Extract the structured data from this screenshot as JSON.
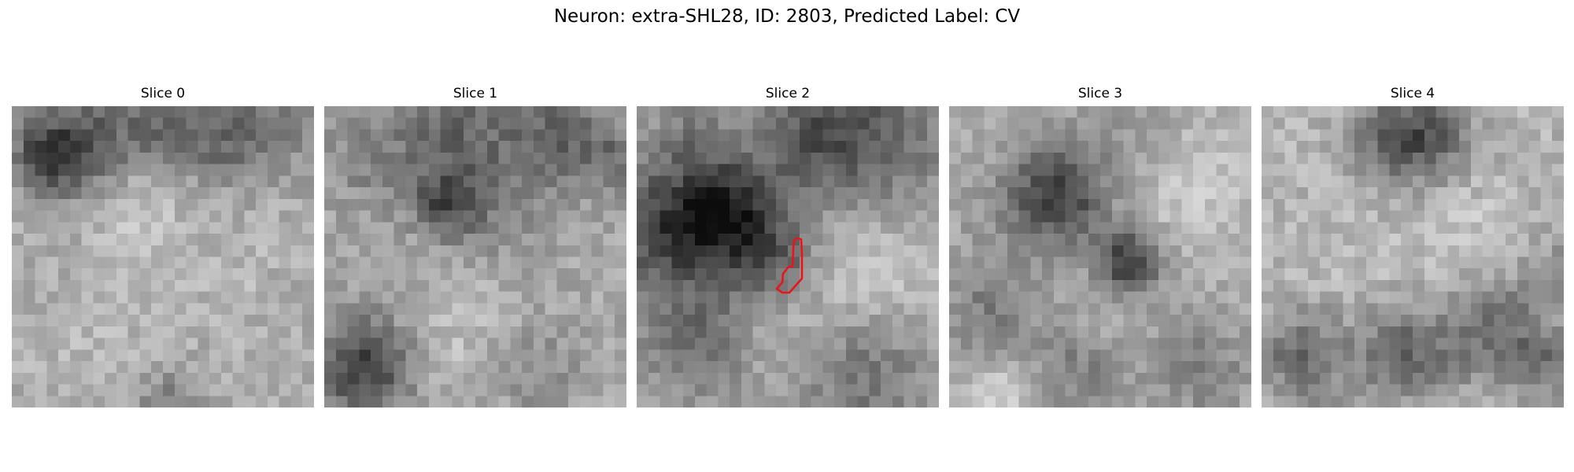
{
  "figure": {
    "title": "Neuron: extra-SHL28, ID: 2803, Predicted Label: CV"
  },
  "slices": [
    {
      "title": "Slice 0",
      "has_contour": false
    },
    {
      "title": "Slice 1",
      "has_contour": false
    },
    {
      "title": "Slice 2",
      "has_contour": true
    },
    {
      "title": "Slice 3",
      "has_contour": false
    },
    {
      "title": "Slice 4",
      "has_contour": false
    }
  ],
  "colors": {
    "contour": "#e8151b",
    "colormap": "grayscale"
  }
}
